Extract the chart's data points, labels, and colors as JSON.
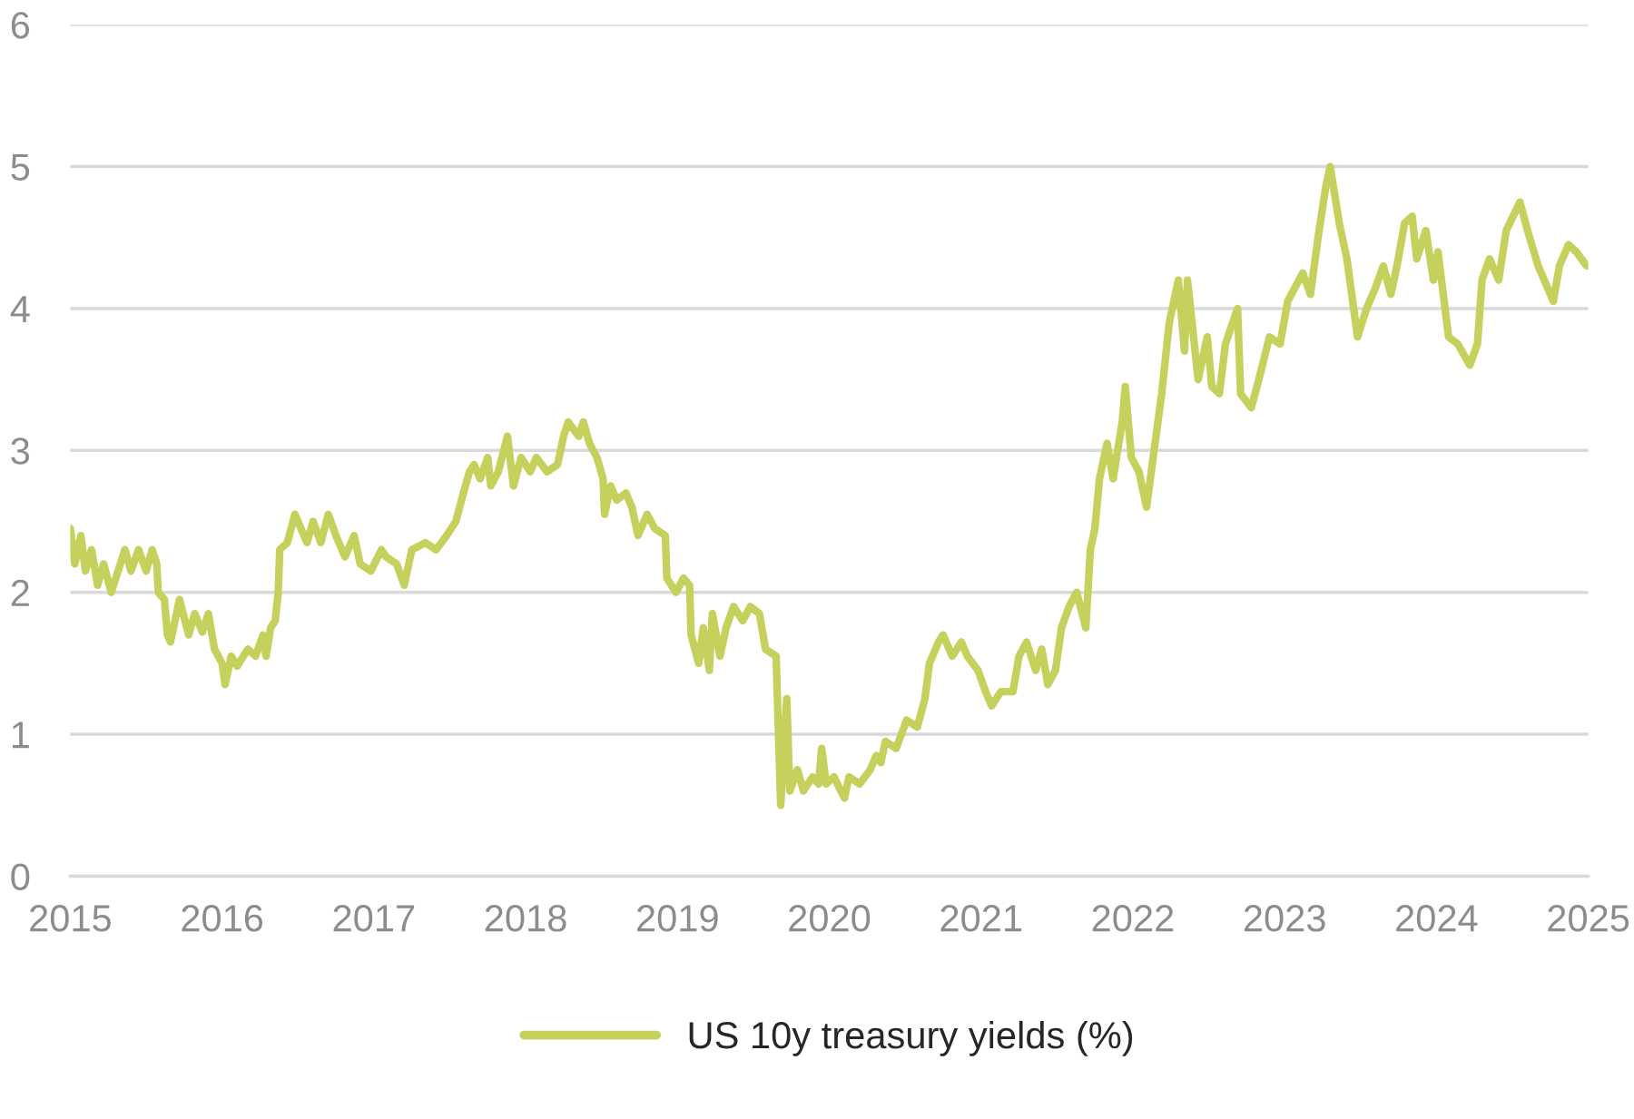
{
  "chart_data": {
    "type": "line",
    "x": [
      2015.0,
      2015.03,
      2015.07,
      2015.1,
      2015.14,
      2015.18,
      2015.22,
      2015.27,
      2015.3,
      2015.36,
      2015.4,
      2015.45,
      2015.5,
      2015.54,
      2015.57,
      2015.58,
      2015.62,
      2015.64,
      2015.66,
      2015.69,
      2015.72,
      2015.78,
      2015.82,
      2015.87,
      2015.91,
      2015.95,
      2016.0,
      2016.02,
      2016.06,
      2016.1,
      2016.17,
      2016.22,
      2016.27,
      2016.29,
      2016.32,
      2016.35,
      2016.37,
      2016.38,
      2016.43,
      2016.48,
      2016.52,
      2016.56,
      2016.6,
      2016.65,
      2016.7,
      2016.75,
      2016.81,
      2016.87,
      2016.91,
      2016.98,
      2017.05,
      2017.08,
      2017.15,
      2017.2,
      2017.25,
      2017.34,
      2017.41,
      2017.48,
      2017.54,
      2017.59,
      2017.63,
      2017.66,
      2017.7,
      2017.75,
      2017.77,
      2017.82,
      2017.88,
      2017.92,
      2017.97,
      2018.03,
      2018.07,
      2018.14,
      2018.21,
      2018.25,
      2018.28,
      2018.35,
      2018.38,
      2018.42,
      2018.47,
      2018.51,
      2018.52,
      2018.56,
      2018.6,
      2018.66,
      2018.7,
      2018.74,
      2018.8,
      2018.85,
      2018.92,
      2018.93,
      2018.99,
      2019.04,
      2019.08,
      2019.09,
      2019.14,
      2019.17,
      2019.21,
      2019.23,
      2019.28,
      2019.32,
      2019.37,
      2019.43,
      2019.48,
      2019.54,
      2019.58,
      2019.65,
      2019.68,
      2019.72,
      2019.74,
      2019.79,
      2019.83,
      2019.89,
      2019.93,
      2019.95,
      2019.98,
      2020.03,
      2020.1,
      2020.13,
      2020.2,
      2020.27,
      2020.31,
      2020.34,
      2020.37,
      2020.44,
      2020.51,
      2020.58,
      2020.63,
      2020.66,
      2020.72,
      2020.75,
      2020.81,
      2020.87,
      2020.91,
      2020.98,
      2021.03,
      2021.07,
      2021.13,
      2021.21,
      2021.25,
      2021.3,
      2021.36,
      2021.4,
      2021.44,
      2021.49,
      2021.53,
      2021.58,
      2021.63,
      2021.69,
      2021.72,
      2021.75,
      2021.78,
      2021.83,
      2021.87,
      2021.93,
      2021.95,
      2021.99,
      2022.04,
      2022.09,
      2022.14,
      2022.19,
      2022.24,
      2022.3,
      2022.34,
      2022.36,
      2022.43,
      2022.49,
      2022.52,
      2022.57,
      2022.61,
      2022.69,
      2022.71,
      2022.78,
      2022.83,
      2022.9,
      2022.97,
      2023.02,
      2023.12,
      2023.17,
      2023.22,
      2023.27,
      2023.3,
      2023.36,
      2023.41,
      2023.48,
      2023.54,
      2023.6,
      2023.65,
      2023.7,
      2023.74,
      2023.79,
      2023.84,
      2023.87,
      2023.93,
      2023.98,
      2024.01,
      2024.08,
      2024.14,
      2024.22,
      2024.27,
      2024.3,
      2024.35,
      2024.41,
      2024.46,
      2024.55,
      2024.6,
      2024.67,
      2024.77,
      2024.81,
      2024.87,
      2024.92,
      2024.99
    ],
    "series": [
      {
        "name": "US 10y treasury yields (%)",
        "color": "#c5d15c",
        "values": [
          2.45,
          2.2,
          2.4,
          2.15,
          2.3,
          2.05,
          2.2,
          2.0,
          2.1,
          2.3,
          2.15,
          2.3,
          2.15,
          2.3,
          2.2,
          2.0,
          1.95,
          1.7,
          1.65,
          1.8,
          1.95,
          1.7,
          1.85,
          1.72,
          1.85,
          1.6,
          1.5,
          1.35,
          1.55,
          1.48,
          1.6,
          1.55,
          1.7,
          1.55,
          1.75,
          1.8,
          2.0,
          2.3,
          2.35,
          2.55,
          2.45,
          2.35,
          2.5,
          2.35,
          2.55,
          2.4,
          2.25,
          2.4,
          2.2,
          2.15,
          2.3,
          2.25,
          2.2,
          2.05,
          2.3,
          2.35,
          2.3,
          2.4,
          2.5,
          2.7,
          2.85,
          2.9,
          2.8,
          2.95,
          2.75,
          2.85,
          3.1,
          2.75,
          2.95,
          2.85,
          2.95,
          2.85,
          2.9,
          3.1,
          3.2,
          3.1,
          3.2,
          3.05,
          2.95,
          2.8,
          2.55,
          2.75,
          2.65,
          2.7,
          2.6,
          2.4,
          2.55,
          2.45,
          2.4,
          2.1,
          2.0,
          2.1,
          2.05,
          1.7,
          1.5,
          1.75,
          1.45,
          1.85,
          1.55,
          1.75,
          1.9,
          1.8,
          1.9,
          1.85,
          1.6,
          1.55,
          0.5,
          1.25,
          0.6,
          0.75,
          0.6,
          0.7,
          0.65,
          0.9,
          0.65,
          0.7,
          0.55,
          0.7,
          0.65,
          0.75,
          0.85,
          0.8,
          0.95,
          0.9,
          1.1,
          1.05,
          1.25,
          1.5,
          1.65,
          1.7,
          1.55,
          1.65,
          1.55,
          1.45,
          1.3,
          1.2,
          1.3,
          1.3,
          1.55,
          1.65,
          1.45,
          1.6,
          1.35,
          1.45,
          1.75,
          1.9,
          2.0,
          1.75,
          2.3,
          2.45,
          2.8,
          3.05,
          2.8,
          3.2,
          3.45,
          2.95,
          2.85,
          2.6,
          3.0,
          3.4,
          3.9,
          4.2,
          3.7,
          4.2,
          3.5,
          3.8,
          3.45,
          3.4,
          3.75,
          4.0,
          3.4,
          3.3,
          3.5,
          3.8,
          3.75,
          4.05,
          4.25,
          4.1,
          4.5,
          4.85,
          5.0,
          4.6,
          4.35,
          3.8,
          4.0,
          4.15,
          4.3,
          4.1,
          4.3,
          4.6,
          4.65,
          4.35,
          4.55,
          4.2,
          4.4,
          3.8,
          3.75,
          3.6,
          3.75,
          4.2,
          4.35,
          4.2,
          4.55,
          4.75,
          4.55,
          4.3,
          4.05,
          4.3,
          4.45,
          4.4,
          4.3
        ]
      }
    ],
    "xlim": [
      2015,
      2025
    ],
    "xticks": [
      2015,
      2016,
      2017,
      2018,
      2019,
      2020,
      2021,
      2022,
      2023,
      2024,
      2025
    ],
    "ylim": [
      0,
      6
    ],
    "yticks": [
      0,
      1,
      2,
      3,
      4,
      5,
      6
    ],
    "grid": "y",
    "legend": "bottom",
    "marker": "none",
    "line_style": "solid"
  }
}
